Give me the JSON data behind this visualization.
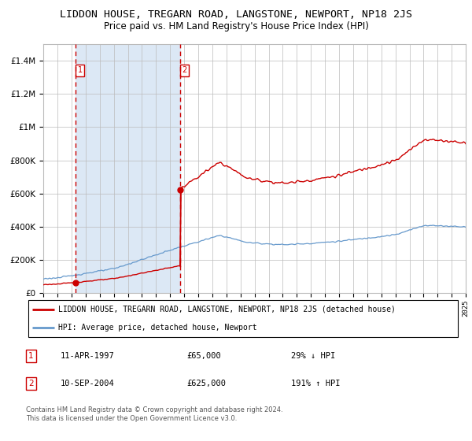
{
  "title": "LIDDON HOUSE, TREGARN ROAD, LANGSTONE, NEWPORT, NP18 2JS",
  "subtitle": "Price paid vs. HM Land Registry's House Price Index (HPI)",
  "legend_line1": "LIDDON HOUSE, TREGARN ROAD, LANGSTONE, NEWPORT, NP18 2JS (detached house)",
  "legend_line2": "HPI: Average price, detached house, Newport",
  "sale1_date": "11-APR-1997",
  "sale1_price": 65000,
  "sale1_label": "29% ↓ HPI",
  "sale2_date": "10-SEP-2004",
  "sale2_price": 625000,
  "sale2_label": "191% ↑ HPI",
  "footer": "Contains HM Land Registry data © Crown copyright and database right 2024.\nThis data is licensed under the Open Government Licence v3.0.",
  "red_color": "#cc0000",
  "blue_color": "#6699cc",
  "bg_shade_color": "#dce8f5",
  "grid_color": "#bbbbbb",
  "sale1_year": 1997.27,
  "sale2_year": 2004.7,
  "ylim_max": 1500000,
  "title_fontsize": 9.5,
  "subtitle_fontsize": 8.5
}
